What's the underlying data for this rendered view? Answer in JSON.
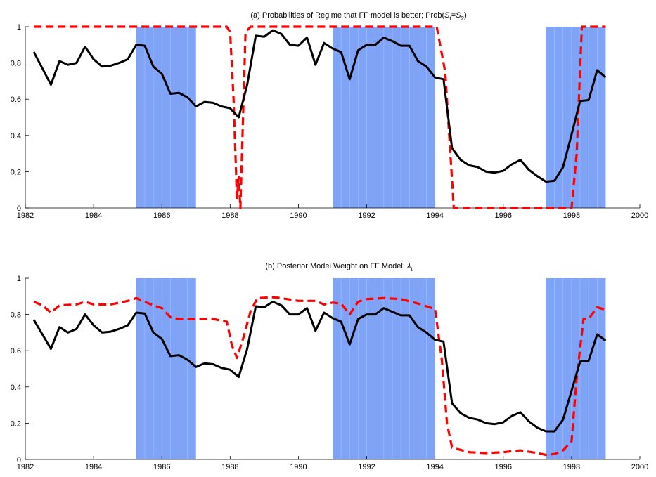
{
  "figure": {
    "background": "#ffffff"
  },
  "colors": {
    "shade": "#7fa3f7",
    "shade_line": "#a8c0fa",
    "black_series": "#000000",
    "red_series": "#ff0000",
    "axis": "#000000"
  },
  "chart_data": [
    {
      "type": "line",
      "title": "(a) Probabilities of Regime that FF model is better; Prob(S_t=S_2)",
      "title_text": "(a) Probabilities of Regime that FF model is better; Prob(",
      "title_sym": "S",
      "title_sub1": "t",
      "title_eq": "=",
      "title_sym2": "S",
      "title_sub2": "2",
      "title_close": ")",
      "xlim": [
        1982,
        2000
      ],
      "ylim": [
        0,
        1
      ],
      "xticks": [
        1982,
        1984,
        1986,
        1988,
        1990,
        1992,
        1994,
        1996,
        1998,
        2000
      ],
      "yticks": [
        0,
        0.2,
        0.4,
        0.6,
        0.8,
        1
      ],
      "ytick_labels": [
        "0",
        "0.2",
        "0.4",
        "0.6",
        "0.8",
        "1"
      ],
      "shaded_periods": [
        [
          1985.25,
          1987.0
        ],
        [
          1991.0,
          1994.0
        ],
        [
          1997.25,
          1999.0
        ]
      ],
      "series": [
        {
          "color": "black",
          "style": "solid",
          "x": [
            1982.25,
            1982.5,
            1982.75,
            1983,
            1983.25,
            1983.5,
            1983.75,
            1984,
            1984.25,
            1984.5,
            1984.75,
            1985,
            1985.25,
            1985.5,
            1985.75,
            1986,
            1986.25,
            1986.5,
            1986.75,
            1987,
            1987.25,
            1987.5,
            1987.75,
            1988,
            1988.25,
            1988.5,
            1988.75,
            1989,
            1989.25,
            1989.5,
            1989.75,
            1990,
            1990.25,
            1990.5,
            1990.75,
            1991,
            1991.25,
            1991.5,
            1991.75,
            1992,
            1992.25,
            1992.5,
            1992.75,
            1993,
            1993.25,
            1993.5,
            1993.75,
            1994,
            1994.25,
            1994.5,
            1994.75,
            1995,
            1995.25,
            1995.5,
            1995.75,
            1996,
            1996.25,
            1996.5,
            1996.75,
            1997,
            1997.25,
            1997.5,
            1997.75,
            1998,
            1998.25,
            1998.5,
            1998.75,
            1999
          ],
          "y": [
            0.86,
            0.77,
            0.68,
            0.81,
            0.79,
            0.8,
            0.89,
            0.82,
            0.78,
            0.785,
            0.8,
            0.82,
            0.9,
            0.895,
            0.78,
            0.74,
            0.63,
            0.635,
            0.61,
            0.56,
            0.585,
            0.58,
            0.56,
            0.55,
            0.5,
            0.68,
            0.95,
            0.945,
            0.98,
            0.96,
            0.9,
            0.895,
            0.94,
            0.79,
            0.91,
            0.88,
            0.86,
            0.71,
            0.87,
            0.9,
            0.9,
            0.94,
            0.92,
            0.895,
            0.895,
            0.81,
            0.78,
            0.72,
            0.71,
            0.33,
            0.265,
            0.235,
            0.225,
            0.2,
            0.195,
            0.205,
            0.24,
            0.265,
            0.21,
            0.175,
            0.145,
            0.15,
            0.225,
            0.405,
            0.59,
            0.595,
            0.76,
            0.72
          ]
        },
        {
          "color": "red",
          "style": "dashed",
          "x": [
            1982.25,
            1987.9,
            1988.0,
            1988.1,
            1988.2,
            1988.25,
            1988.3,
            1988.45,
            1988.6,
            1994.05,
            1994.3,
            1994.55,
            1998.0,
            1998.15,
            1998.3,
            1999.0
          ],
          "y": [
            1.0,
            1.0,
            0.97,
            0.6,
            0.05,
            0.17,
            0.0,
            0.97,
            1.0,
            1.0,
            0.75,
            0.0,
            0.0,
            0.3,
            1.0,
            1.0
          ]
        }
      ]
    },
    {
      "type": "line",
      "title": "(b) Posterior Model Weight on FF Model, λ_t",
      "title_text": "(b) Posterior Model Weight on FF Model; ",
      "title_sym": "λ",
      "title_sub1": "t",
      "xlim": [
        1982,
        2000
      ],
      "ylim": [
        0,
        1
      ],
      "xticks": [
        1982,
        1984,
        1986,
        1988,
        1990,
        1992,
        1994,
        1996,
        1998,
        2000
      ],
      "yticks": [
        0,
        0.2,
        0.4,
        0.6,
        0.8,
        1
      ],
      "ytick_labels": [
        "0",
        "0.2",
        "0.4",
        "0.6",
        "0.8",
        "1"
      ],
      "shaded_periods": [
        [
          1985.25,
          1987.0
        ],
        [
          1991.0,
          1994.0
        ],
        [
          1997.25,
          1999.0
        ]
      ],
      "series": [
        {
          "color": "black",
          "style": "solid",
          "x": [
            1982.25,
            1982.5,
            1982.75,
            1983,
            1983.25,
            1983.5,
            1983.75,
            1984,
            1984.25,
            1984.5,
            1984.75,
            1985,
            1985.25,
            1985.5,
            1985.75,
            1986,
            1986.25,
            1986.5,
            1986.75,
            1987,
            1987.25,
            1987.5,
            1987.75,
            1988,
            1988.25,
            1988.5,
            1988.75,
            1989,
            1989.25,
            1989.5,
            1989.75,
            1990,
            1990.25,
            1990.5,
            1990.75,
            1991,
            1991.25,
            1991.5,
            1991.75,
            1992,
            1992.25,
            1992.5,
            1992.75,
            1993,
            1993.25,
            1993.5,
            1993.75,
            1994,
            1994.25,
            1994.5,
            1994.75,
            1995,
            1995.25,
            1995.5,
            1995.75,
            1996,
            1996.25,
            1996.5,
            1996.75,
            1997,
            1997.25,
            1997.5,
            1997.75,
            1998,
            1998.25,
            1998.5,
            1998.75,
            1999
          ],
          "y": [
            0.77,
            0.69,
            0.61,
            0.73,
            0.7,
            0.72,
            0.8,
            0.74,
            0.7,
            0.705,
            0.72,
            0.74,
            0.81,
            0.805,
            0.7,
            0.665,
            0.57,
            0.575,
            0.55,
            0.51,
            0.53,
            0.525,
            0.505,
            0.495,
            0.455,
            0.61,
            0.845,
            0.84,
            0.87,
            0.85,
            0.8,
            0.8,
            0.835,
            0.71,
            0.81,
            0.78,
            0.76,
            0.635,
            0.775,
            0.8,
            0.8,
            0.835,
            0.815,
            0.795,
            0.795,
            0.73,
            0.7,
            0.66,
            0.65,
            0.31,
            0.255,
            0.23,
            0.22,
            0.2,
            0.195,
            0.205,
            0.24,
            0.26,
            0.21,
            0.175,
            0.155,
            0.155,
            0.22,
            0.38,
            0.54,
            0.545,
            0.69,
            0.655
          ]
        },
        {
          "color": "red",
          "style": "dashed",
          "x": [
            1982.25,
            1982.5,
            1982.75,
            1983,
            1983.5,
            1983.75,
            1984,
            1984.5,
            1985,
            1985.25,
            1985.5,
            1985.75,
            1986,
            1986.25,
            1986.5,
            1987,
            1987.5,
            1987.9,
            1988.05,
            1988.2,
            1988.4,
            1988.6,
            1988.8,
            1989.25,
            1989.5,
            1990,
            1990.5,
            1990.75,
            1991,
            1991.25,
            1991.5,
            1991.75,
            1992,
            1992.5,
            1993,
            1993.5,
            1994,
            1994.2,
            1994.35,
            1994.5,
            1995,
            1995.5,
            1996,
            1996.5,
            1997,
            1997.25,
            1997.5,
            1997.75,
            1998,
            1998.15,
            1998.35,
            1998.5,
            1998.75,
            1999
          ],
          "y": [
            0.87,
            0.85,
            0.81,
            0.85,
            0.855,
            0.87,
            0.855,
            0.855,
            0.875,
            0.89,
            0.87,
            0.85,
            0.835,
            0.785,
            0.775,
            0.775,
            0.775,
            0.76,
            0.63,
            0.56,
            0.68,
            0.82,
            0.89,
            0.895,
            0.89,
            0.875,
            0.875,
            0.855,
            0.865,
            0.86,
            0.8,
            0.87,
            0.885,
            0.89,
            0.885,
            0.86,
            0.83,
            0.55,
            0.2,
            0.065,
            0.04,
            0.035,
            0.04,
            0.05,
            0.035,
            0.025,
            0.03,
            0.05,
            0.1,
            0.45,
            0.775,
            0.775,
            0.84,
            0.825
          ]
        }
      ]
    }
  ]
}
